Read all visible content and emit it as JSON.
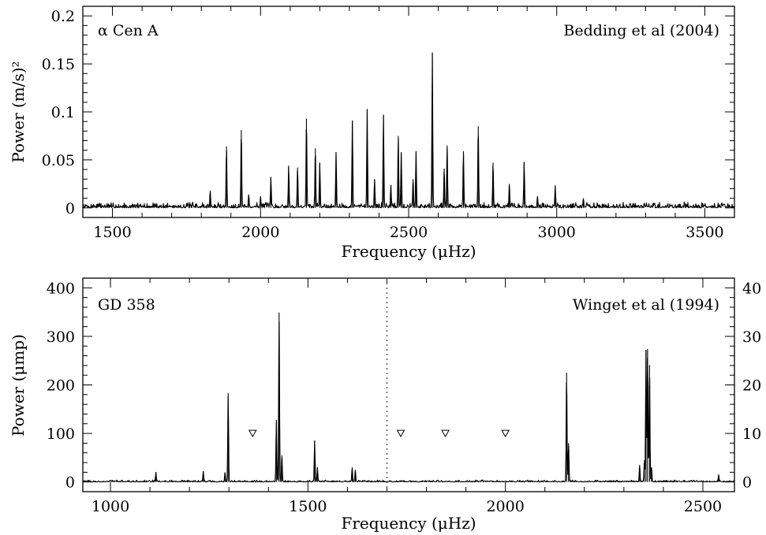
{
  "chart_data": [
    {
      "type": "line",
      "annotations": [
        "α Cen A",
        "Bedding et al (2004)"
      ],
      "xlabel": "Frequency (μHz)",
      "ylabel": "Power (m/s)²",
      "xlim": [
        1400,
        3600
      ],
      "ylim": [
        -0.01,
        0.21
      ],
      "xticks": [
        1500,
        2000,
        2500,
        3000,
        3500
      ],
      "yticks": [
        0,
        0.05,
        0.1,
        0.15,
        0.2
      ],
      "ytick_labels": [
        "0",
        "0.05",
        "0.1",
        "0.15",
        "0.2"
      ],
      "grid": false,
      "noise_level": 0.003,
      "peaks": [
        {
          "x": 1830,
          "y": 0.018
        },
        {
          "x": 1885,
          "y": 0.064
        },
        {
          "x": 1935,
          "y": 0.081
        },
        {
          "x": 1960,
          "y": 0.014
        },
        {
          "x": 2000,
          "y": 0.012
        },
        {
          "x": 2035,
          "y": 0.032
        },
        {
          "x": 2095,
          "y": 0.044
        },
        {
          "x": 2125,
          "y": 0.042
        },
        {
          "x": 2155,
          "y": 0.093
        },
        {
          "x": 2185,
          "y": 0.062
        },
        {
          "x": 2200,
          "y": 0.047
        },
        {
          "x": 2255,
          "y": 0.058
        },
        {
          "x": 2310,
          "y": 0.091
        },
        {
          "x": 2360,
          "y": 0.103
        },
        {
          "x": 2385,
          "y": 0.03
        },
        {
          "x": 2415,
          "y": 0.097
        },
        {
          "x": 2440,
          "y": 0.024
        },
        {
          "x": 2465,
          "y": 0.075
        },
        {
          "x": 2475,
          "y": 0.058
        },
        {
          "x": 2515,
          "y": 0.03
        },
        {
          "x": 2525,
          "y": 0.059
        },
        {
          "x": 2580,
          "y": 0.162
        },
        {
          "x": 2620,
          "y": 0.041
        },
        {
          "x": 2630,
          "y": 0.065
        },
        {
          "x": 2685,
          "y": 0.059
        },
        {
          "x": 2735,
          "y": 0.085
        },
        {
          "x": 2785,
          "y": 0.047
        },
        {
          "x": 2840,
          "y": 0.025
        },
        {
          "x": 2890,
          "y": 0.048
        },
        {
          "x": 2935,
          "y": 0.012
        },
        {
          "x": 2995,
          "y": 0.023
        },
        {
          "x": 3090,
          "y": 0.01
        }
      ]
    },
    {
      "type": "line",
      "annotations": [
        "GD 358",
        "Winget et al (1994)"
      ],
      "xlabel": "Frequency (μHz)",
      "ylabel": "Power (μmp)",
      "xlim": [
        930,
        2580
      ],
      "ylim": [
        -20,
        420
      ],
      "xticks": [
        1000,
        1500,
        2000,
        2500
      ],
      "yticks": [
        0,
        100,
        200,
        300,
        400
      ],
      "right_axis_ticks": [
        0,
        10,
        20,
        30,
        40
      ],
      "grid": false,
      "divider_x": 1700,
      "noise_level": 2,
      "peaks": [
        {
          "x": 1115,
          "y": 20
        },
        {
          "x": 1235,
          "y": 22
        },
        {
          "x": 1290,
          "y": 20
        },
        {
          "x": 1298,
          "y": 183
        },
        {
          "x": 1420,
          "y": 128
        },
        {
          "x": 1427,
          "y": 349
        },
        {
          "x": 1434,
          "y": 55
        },
        {
          "x": 1517,
          "y": 85
        },
        {
          "x": 1524,
          "y": 30
        },
        {
          "x": 1612,
          "y": 30
        },
        {
          "x": 1620,
          "y": 25
        },
        {
          "x": 2155,
          "y": 225
        },
        {
          "x": 2160,
          "y": 80
        },
        {
          "x": 2340,
          "y": 35
        },
        {
          "x": 2352,
          "y": 45
        },
        {
          "x": 2356,
          "y": 272
        },
        {
          "x": 2360,
          "y": 274
        },
        {
          "x": 2365,
          "y": 241
        },
        {
          "x": 2370,
          "y": 30
        },
        {
          "x": 2540,
          "y": 15
        }
      ],
      "markers": [
        {
          "x": 1360,
          "y": 100
        },
        {
          "x": 1735,
          "y": 100
        },
        {
          "x": 1848,
          "y": 100
        },
        {
          "x": 2000,
          "y": 100
        }
      ]
    }
  ]
}
